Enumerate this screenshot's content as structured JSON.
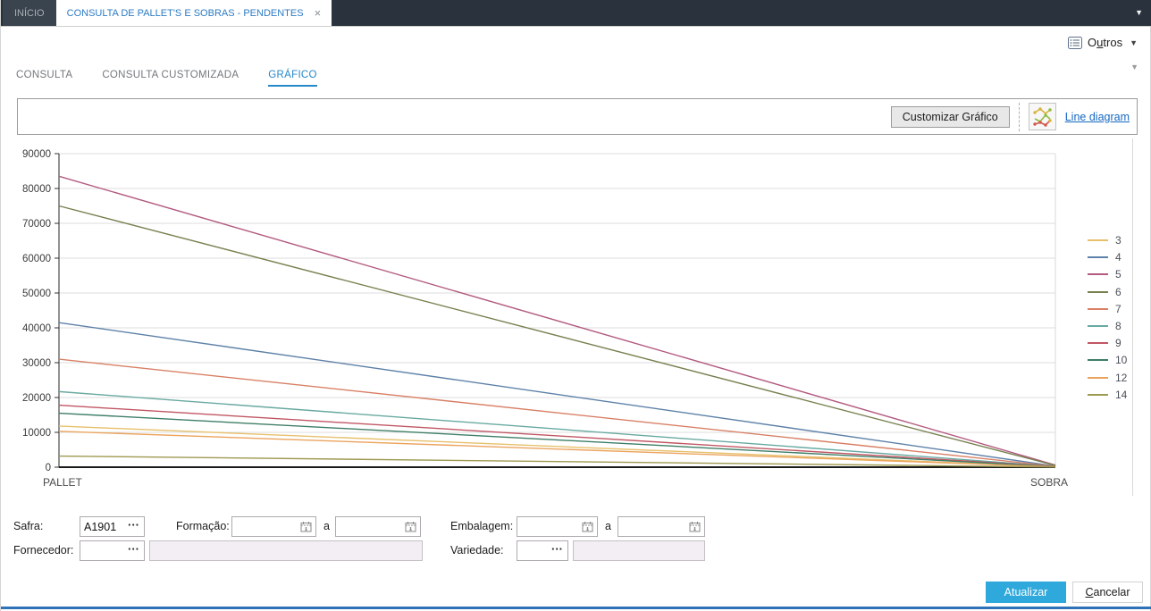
{
  "titlebar": {
    "home_tab": "INÍCIO",
    "active_tab": "CONSULTA DE PALLET'S E SOBRAS - PENDENTES",
    "close_label": "×",
    "caret": "▼"
  },
  "header": {
    "outros_label": "Outros",
    "outros_caret": "▼",
    "mini_caret": "▼"
  },
  "tabs": {
    "consulta": "CONSULTA",
    "consulta_customizada": "CONSULTA CUSTOMIZADA",
    "grafico": "GRÁFICO"
  },
  "toolbar": {
    "customize_button": "Customizar Gráfico",
    "diagram_link": "Line diagram"
  },
  "chart_data": {
    "type": "line",
    "categories": [
      "PALLET",
      "SOBRA"
    ],
    "series": [
      {
        "name": "3",
        "color": "#e7c06c",
        "values": [
          11800,
          100
        ]
      },
      {
        "name": "4",
        "color": "#5d81a8",
        "values": [
          41500,
          300
        ]
      },
      {
        "name": "5",
        "color": "#b25a7f",
        "values": [
          83500,
          600
        ]
      },
      {
        "name": "6",
        "color": "#76814f",
        "values": [
          75000,
          500
        ]
      },
      {
        "name": "7",
        "color": "#d88065",
        "values": [
          31000,
          250
        ]
      },
      {
        "name": "8",
        "color": "#68a9a1",
        "values": [
          21700,
          200
        ]
      },
      {
        "name": "9",
        "color": "#c15663",
        "values": [
          17800,
          200
        ]
      },
      {
        "name": "10",
        "color": "#3e7e66",
        "values": [
          15500,
          150
        ]
      },
      {
        "name": "12",
        "color": "#eba45e",
        "values": [
          10300,
          100
        ]
      },
      {
        "name": "14",
        "color": "#9e9951",
        "values": [
          3200,
          50
        ]
      }
    ],
    "ylim": [
      0,
      90000
    ],
    "ytick_step": 10000,
    "grid": true,
    "legend_position": "right"
  },
  "filters": {
    "safra_label": "Safra:",
    "safra_value": "A1901",
    "formacao_label": "Formação:",
    "formacao_from": "",
    "formacao_to": "",
    "range_separator": "a",
    "embalagem_label": "Embalagem:",
    "embalagem_from": "",
    "embalagem_to": "",
    "fornecedor_label": "Fornecedor:",
    "fornecedor_value": "",
    "fornecedor_descricao": "",
    "variedade_label": "Variedade:",
    "variedade_value": "",
    "variedade_descricao": "",
    "ellipsis": "···"
  },
  "footer": {
    "atualizar": "Atualizar",
    "cancelar": "Cancelar"
  }
}
